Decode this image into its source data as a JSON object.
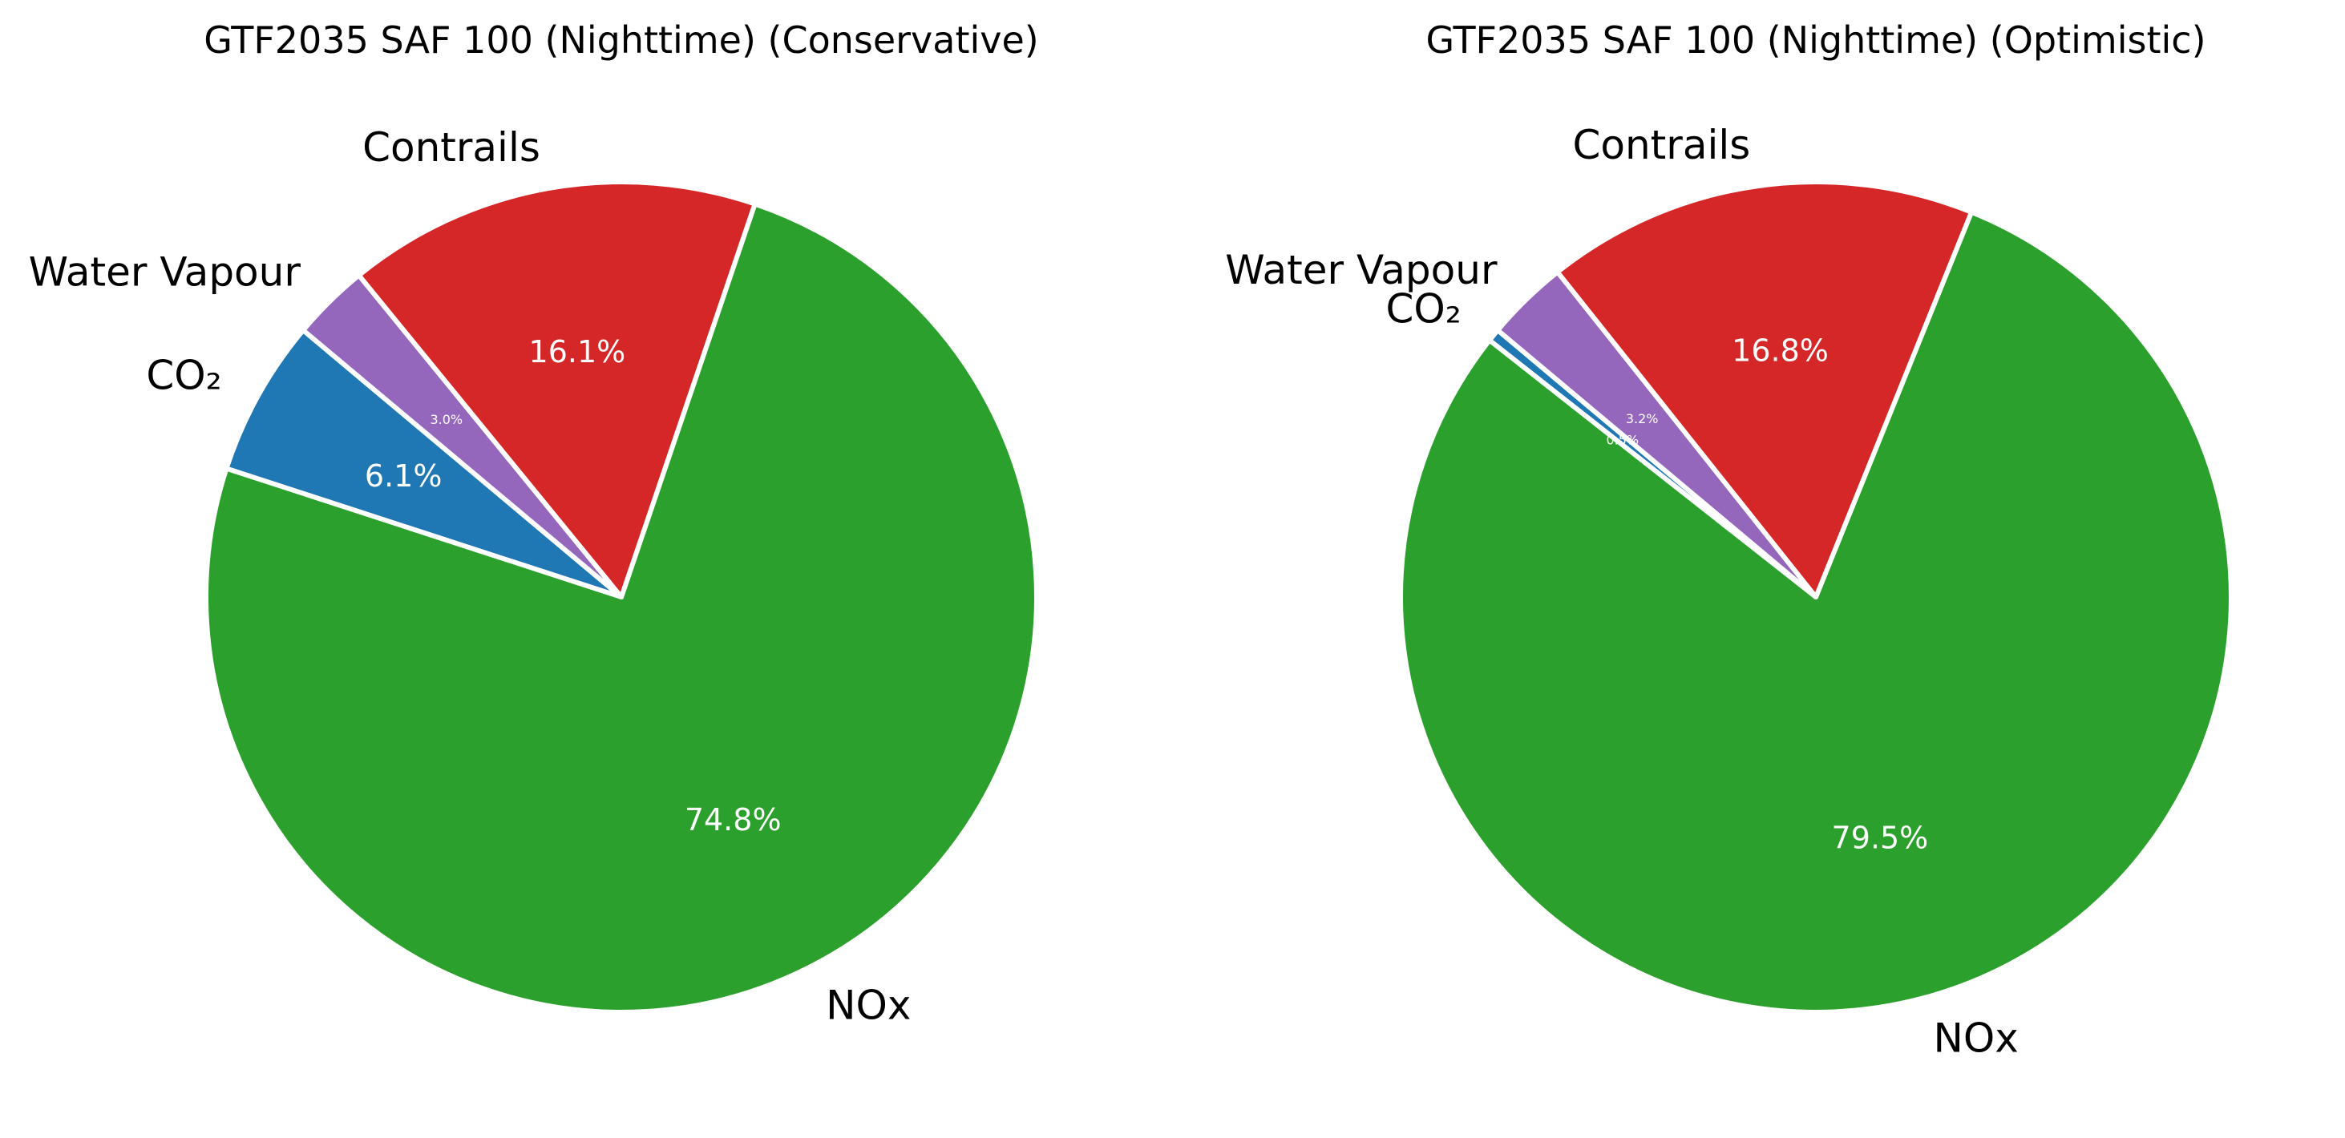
{
  "chart_data": [
    {
      "type": "pie",
      "title": "GTF2035 SAF 100 (Nighttime) (Conservative)",
      "start_angle_deg": 140,
      "direction": "counterclockwise",
      "slices": [
        {
          "label": "CO₂",
          "value": 6.1,
          "pct_label": "6.1%",
          "color": "#1f77b4"
        },
        {
          "label": "NOx",
          "value": 74.8,
          "pct_label": "74.8%",
          "color": "#2ca02c"
        },
        {
          "label": "Contrails",
          "value": 16.1,
          "pct_label": "16.1%",
          "color": "#d62728"
        },
        {
          "label": "Water Vapour",
          "value": 3.0,
          "pct_label": "3.0%",
          "color": "#9467bd"
        }
      ]
    },
    {
      "type": "pie",
      "title": "GTF2035 SAF 100 (Nighttime) (Optimistic)",
      "start_angle_deg": 140,
      "direction": "counterclockwise",
      "slices": [
        {
          "label": "CO₂",
          "value": 0.5,
          "pct_label": "0.5%",
          "color": "#1f77b4"
        },
        {
          "label": "NOx",
          "value": 79.5,
          "pct_label": "79.5%",
          "color": "#2ca02c"
        },
        {
          "label": "Contrails",
          "value": 16.8,
          "pct_label": "16.8%",
          "color": "#d62728"
        },
        {
          "label": "Water Vapour",
          "value": 3.2,
          "pct_label": "3.2%",
          "color": "#9467bd"
        }
      ]
    }
  ]
}
